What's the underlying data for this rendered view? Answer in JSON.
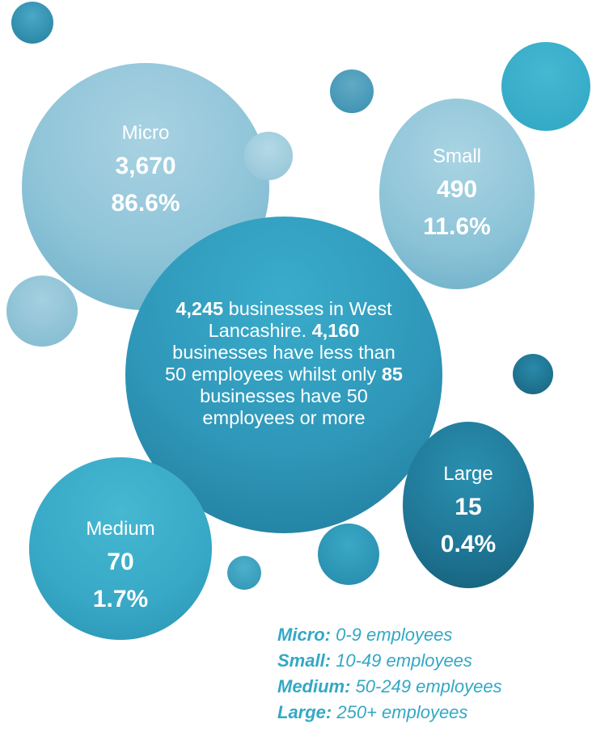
{
  "bubbles": {
    "micro": {
      "label": "Micro",
      "count": "3,670",
      "percent": "86.6%"
    },
    "small": {
      "label": "Small",
      "count": "490",
      "percent": "11.6%"
    },
    "medium": {
      "label": "Medium",
      "count": "70",
      "percent": "1.7%"
    },
    "large": {
      "label": "Large",
      "count": "15",
      "percent": "0.4%"
    }
  },
  "center": {
    "total": "4,245",
    "line1": " businesses in West Lancashire. ",
    "under50": "4,160",
    "line2": " businesses have less than 50 employees whilst only ",
    "over50": "85",
    "line3": " businesses have 50 employees or more"
  },
  "legend": [
    {
      "term": "Micro:",
      "desc": " 0-9 employees"
    },
    {
      "term": "Small:",
      "desc": " 10-49 employees"
    },
    {
      "term": "Medium:",
      "desc": " 50-249 employees"
    },
    {
      "term": "Large:",
      "desc": " 250+ employees"
    }
  ],
  "colors": {
    "light_blue": "#8fc4d8",
    "teal": "#2f97b9",
    "dark_teal": "#1f7594",
    "cyan": "#37a8c6",
    "legend_text": "#33a8c5"
  }
}
